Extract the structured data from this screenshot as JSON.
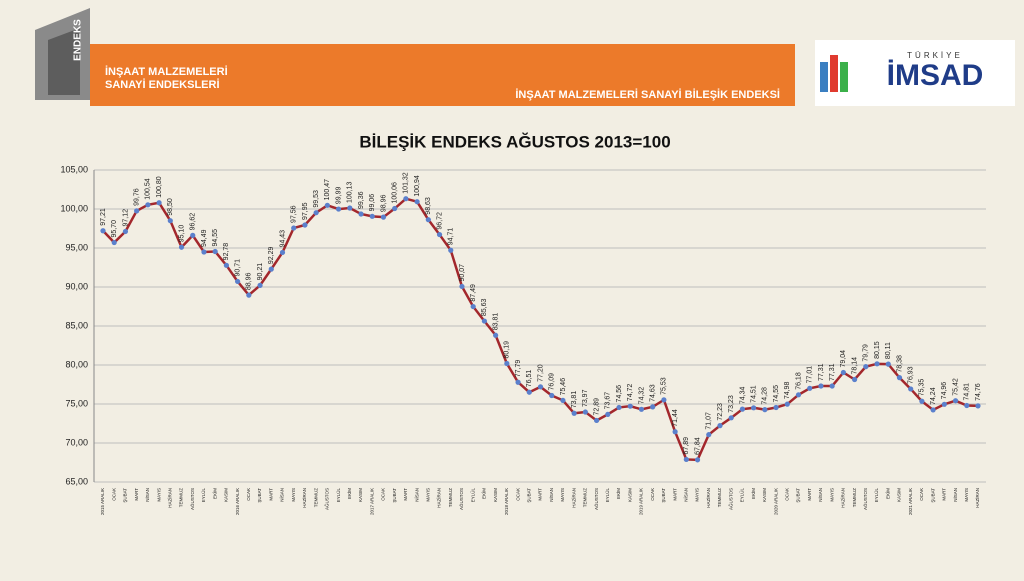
{
  "header": {
    "logo_text": "ENDEKS",
    "banner_left": [
      "İNŞAAT MALZEMELERİ",
      "SANAYİ ENDEKSLERİ"
    ],
    "banner_right": "İNŞAAT MALZEMELERİ SANAYİ BİLEŞİK ENDEKSİ",
    "brand_top": "TÜRKİYE",
    "brand": "İMSAD"
  },
  "chart_data": {
    "type": "line",
    "title": "BİLEŞİK ENDEKS AĞUSTOS 2013=100",
    "categories": [
      "2015 ARALIK",
      "OCAK",
      "ŞUBAT",
      "MART",
      "NİSAN",
      "MAYIS",
      "HAZİRAN",
      "TEMMUZ",
      "AĞUSTOS",
      "EYLÜL",
      "EKİM",
      "KASIM",
      "2016 ARALIK",
      "OCAK",
      "ŞUBAT",
      "MART",
      "NİSAN",
      "MAYIS",
      "HAZİRAN",
      "TEMMUZ",
      "AĞUSTOS",
      "EYLÜL",
      "EKİM",
      "KASIM",
      "2017 ARALIK",
      "OCAK",
      "ŞUBAT",
      "MART",
      "NİSAN",
      "MAYIS",
      "HAZİRAN",
      "TEMMUZ",
      "AĞUSTOS",
      "EYLÜL",
      "EKİM",
      "KASIM",
      "2018 ARALIK",
      "OCAK",
      "ŞUBAT",
      "MART",
      "NİSAN",
      "MAYIS",
      "HAZİRAN",
      "TEMMUZ",
      "AĞUSTOS",
      "EYLÜL",
      "EKİM",
      "KASIM",
      "2019 ARALIK",
      "OCAK",
      "ŞUBAT",
      "MART",
      "NİSAN",
      "MAYIS",
      "HAZİRAN",
      "TEMMUZ",
      "AĞUSTOS",
      "EYLÜL",
      "EKİM",
      "KASIM",
      "2020 ARALIK",
      "OCAK",
      "ŞUBAT",
      "MART",
      "NİSAN",
      "MAYIS",
      "HAZİRAN",
      "TEMMUZ",
      "AĞUSTOS",
      "EYLÜL",
      "EKİM",
      "KASIM",
      "2021 ARALIK",
      "OCAK",
      "ŞUBAT",
      "MART",
      "NİSAN",
      "MAYIS",
      "HAZİRAN"
    ],
    "values": [
      97.21,
      95.7,
      97.12,
      99.76,
      100.54,
      100.8,
      98.5,
      95.1,
      96.62,
      94.49,
      94.55,
      92.78,
      90.71,
      88.96,
      90.21,
      92.29,
      94.43,
      97.56,
      97.95,
      99.53,
      100.47,
      99.99,
      100.13,
      99.36,
      99.06,
      98.96,
      100.06,
      101.32,
      100.94,
      98.63,
      96.72,
      94.71,
      90.07,
      87.49,
      85.63,
      83.81,
      80.19,
      77.79,
      76.51,
      77.2,
      76.09,
      75.46,
      73.81,
      73.97,
      72.89,
      73.67,
      74.56,
      74.72,
      74.32,
      74.63,
      75.53,
      71.44,
      67.89,
      67.84,
      71.07,
      72.23,
      73.23,
      74.34,
      74.51,
      74.28,
      74.55,
      74.98,
      76.18,
      77.01,
      77.31,
      77.31,
      79.04,
      78.14,
      79.79,
      80.15,
      80.11,
      78.38,
      76.93,
      75.35,
      74.24,
      74.96,
      75.42,
      74.81,
      74.76
    ],
    "value_labels": [
      "97,21",
      "95,70",
      "97,12",
      "99,76",
      "100,54",
      "100,80",
      "98,50",
      "95,10",
      "96,62",
      "94,49",
      "94,55",
      "92,78",
      "90,71",
      "88,96",
      "90,21",
      "92,29",
      "94,43",
      "97,56",
      "97,95",
      "99,53",
      "100,47",
      "99,99",
      "100,13",
      "99,36",
      "99,06",
      "98,96",
      "100,06",
      "101,32",
      "100,94",
      "98,63",
      "96,72",
      "94,71",
      "90,07",
      "87,49",
      "85,63",
      "83,81",
      "80,19",
      "77,79",
      "76,51",
      "77,20",
      "76,09",
      "75,46",
      "73,81",
      "73,97",
      "72,89",
      "73,67",
      "74,56",
      "74,72",
      "74,32",
      "74,63",
      "75,53",
      "71,44",
      "67,89",
      "67,84",
      "71,07",
      "72,23",
      "73,23",
      "74,34",
      "74,51",
      "74,28",
      "74,55",
      "74,98",
      "76,18",
      "77,01",
      "77,31",
      "77,31",
      "79,04",
      "78,14",
      "79,79",
      "80,15",
      "80,11",
      "78,38",
      "76,93",
      "75,35",
      "74,24",
      "74,96",
      "75,42",
      "74,81",
      "74,76"
    ],
    "color": "#a3272c",
    "marker_color": "#5b80cc",
    "ylim": [
      65,
      105
    ],
    "yticks": [
      {
        "value": 65,
        "label": "65,00"
      },
      {
        "value": 70,
        "label": "70,00"
      },
      {
        "value": 75,
        "label": "75,00"
      },
      {
        "value": 80,
        "label": "80,00"
      },
      {
        "value": 85,
        "label": "85,00"
      },
      {
        "value": 90,
        "label": "90,00"
      },
      {
        "value": 95,
        "label": "95,00"
      },
      {
        "value": 100,
        "label": "100,00"
      },
      {
        "value": 105,
        "label": "105,00"
      }
    ],
    "grid": true
  }
}
